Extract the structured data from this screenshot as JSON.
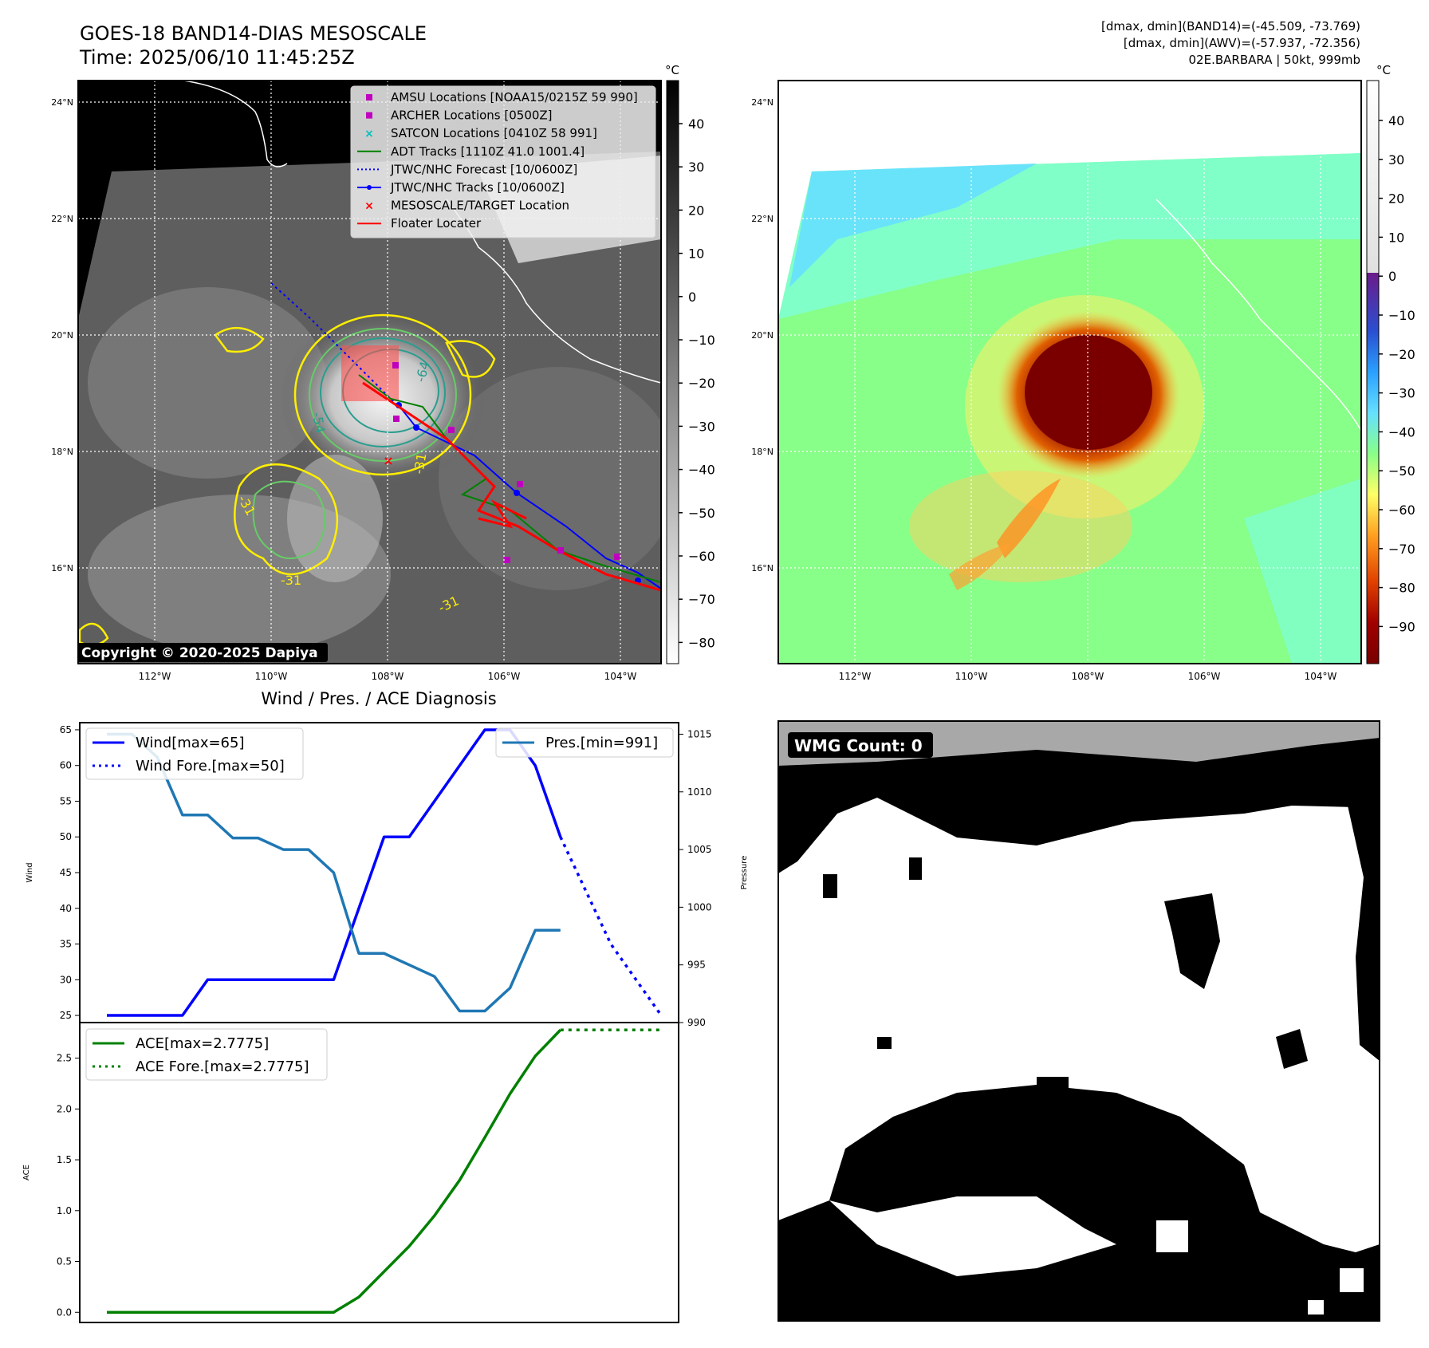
{
  "header": {
    "title": "GOES-18 BAND14-DIAS MESOSCALE",
    "time": "Time: 2025/06/10 11:45:25Z",
    "stats_band14": "[dmax, dmin](BAND14)=(-45.509, -73.769)",
    "stats_awv": "[dmax, dmin](AWV)=(-57.937, -72.356)",
    "storm": "02E.BARBARA | 50kt, 999mb"
  },
  "map_left": {
    "copyright": "Copyright © 2020-2025 Dapiya",
    "colorbar_unit": "°C",
    "colorbar_ticks": [
      "40",
      "30",
      "20",
      "10",
      "0",
      "−10",
      "−20",
      "−30",
      "−40",
      "−50",
      "−60",
      "−70",
      "−80"
    ],
    "lat_labels": [
      "24°N",
      "22°N",
      "20°N",
      "18°N",
      "16°N"
    ],
    "lon_labels": [
      "112°W",
      "110°W",
      "108°W",
      "106°W",
      "104°W"
    ],
    "contour_labels": [
      "-54",
      "-64",
      "-31",
      "-31",
      "-31",
      "-31"
    ],
    "legend": [
      {
        "label": "AMSU Locations [NOAA15/0215Z 59 990]",
        "color": "#bf00bf",
        "marker": "square"
      },
      {
        "label": "ARCHER Locations [0500Z]",
        "color": "#bf00bf",
        "marker": "square"
      },
      {
        "label": "SATCON Locations [0410Z 58 991]",
        "color": "#00bfbf",
        "marker": "x"
      },
      {
        "label": "ADT Tracks [1110Z 41.0 1001.4]",
        "color": "#008000",
        "marker": "line"
      },
      {
        "label": "JTWC/NHC Forecast [10/0600Z]",
        "color": "#0000ff",
        "marker": "dotted"
      },
      {
        "label": "JTWC/NHC Tracks [10/0600Z]",
        "color": "#0000ff",
        "marker": "line-dot"
      },
      {
        "label": "MESOSCALE/TARGET Location",
        "color": "#ff0000",
        "marker": "x"
      },
      {
        "label": "Floater Locater",
        "color": "#ff0000",
        "marker": "line"
      }
    ]
  },
  "map_right": {
    "colorbar_unit": "°C",
    "colorbar_ticks": [
      "40",
      "30",
      "20",
      "10",
      "0",
      "−10",
      "−20",
      "−30",
      "−40",
      "−50",
      "−60",
      "−70",
      "−80",
      "−90"
    ],
    "lat_labels": [
      "24°N",
      "22°N",
      "20°N",
      "18°N",
      "16°N"
    ],
    "lon_labels": [
      "112°W",
      "110°W",
      "108°W",
      "106°W",
      "104°W"
    ]
  },
  "wmg": {
    "label": "WMG Count: 0"
  },
  "chart_data": [
    {
      "type": "line",
      "title": "Wind / Pres. / ACE Diagnosis",
      "ylabel": "Wind",
      "y2label": "Pressure",
      "ylim": [
        24,
        66
      ],
      "y2lim": [
        990,
        1016
      ],
      "yticks": [
        25,
        30,
        35,
        40,
        45,
        50,
        55,
        60,
        65
      ],
      "y2ticks": [
        990,
        995,
        1000,
        1005,
        1010,
        1015
      ],
      "x": [
        0,
        1,
        2,
        3,
        4,
        5,
        6,
        7,
        8,
        9,
        10,
        11,
        12,
        13,
        14,
        15,
        16,
        17,
        18,
        19,
        20,
        21,
        22,
        23
      ],
      "series": [
        {
          "name": "Wind[max=65]",
          "axis": "left",
          "style": "solid",
          "color": "#0000ff",
          "x": [
            0,
            1,
            2,
            3,
            4,
            5,
            6,
            7,
            8,
            9,
            10,
            11,
            12,
            13,
            14,
            15,
            16,
            17,
            18
          ],
          "values": [
            25,
            25,
            25,
            25,
            30,
            30,
            30,
            30,
            30,
            30,
            40,
            50,
            50,
            55,
            60,
            65,
            65,
            60,
            50
          ]
        },
        {
          "name": "Wind Fore.[max=50]",
          "axis": "left",
          "style": "dotted",
          "color": "#0000ff",
          "x": [
            18,
            20,
            22
          ],
          "values": [
            50,
            35,
            25
          ]
        },
        {
          "name": "Pres.[min=991]",
          "axis": "right",
          "style": "solid",
          "color": "#1f77b4",
          "x": [
            0,
            1,
            2,
            3,
            4,
            5,
            6,
            7,
            8,
            9,
            10,
            11,
            12,
            13,
            14,
            15,
            16,
            17,
            18
          ],
          "values": [
            1015,
            1015,
            1013,
            1008,
            1008,
            1006,
            1006,
            1005,
            1005,
            1003,
            996,
            996,
            995,
            994,
            991,
            991,
            993,
            998,
            998
          ]
        }
      ]
    },
    {
      "type": "line",
      "ylabel": "ACE",
      "ylim": [
        -0.1,
        2.85
      ],
      "yticks": [
        "0.0",
        "0.5",
        "1.0",
        "1.5",
        "2.0",
        "2.5"
      ],
      "series": [
        {
          "name": "ACE[max=2.7775]",
          "style": "solid",
          "color": "#008000",
          "x": [
            0,
            1,
            2,
            3,
            4,
            5,
            6,
            7,
            8,
            9,
            10,
            11,
            12,
            13,
            14,
            15,
            16,
            17,
            18
          ],
          "values": [
            0,
            0,
            0,
            0,
            0,
            0,
            0,
            0,
            0,
            0,
            0.15,
            0.4,
            0.65,
            0.95,
            1.3,
            1.72,
            2.15,
            2.52,
            2.7775
          ]
        },
        {
          "name": "ACE Fore.[max=2.7775]",
          "style": "dotted",
          "color": "#008000",
          "x": [
            18,
            22
          ],
          "values": [
            2.7775,
            2.7775
          ]
        }
      ]
    }
  ]
}
